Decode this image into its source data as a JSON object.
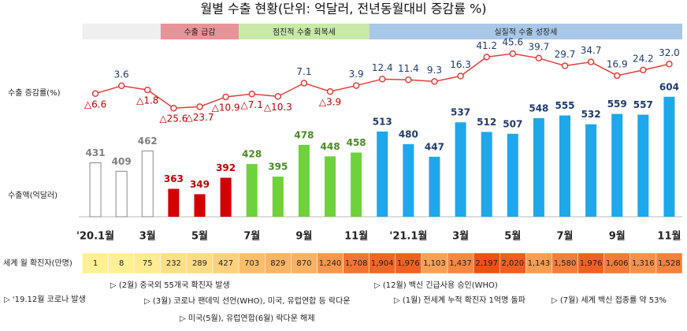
{
  "chart_data": {
    "type": "combo",
    "title": "월별 수출 현황(단위: 억달러, 전년동월대비 증감률 %)",
    "categories": [
      "'20.1월",
      null,
      "3월",
      null,
      "5월",
      null,
      "7월",
      null,
      "9월",
      null,
      "11월",
      null,
      "'21.1월",
      null,
      "3월",
      null,
      "5월",
      null,
      "7월",
      null,
      "9월",
      null,
      "11월"
    ],
    "series": [
      {
        "name": "수출 증감률(%)",
        "type": "line",
        "axis": "y2",
        "color": "#e0403a",
        "values": [
          -6.6,
          3.6,
          -1.8,
          -25.6,
          -23.7,
          -10.9,
          -7.1,
          -10.3,
          7.1,
          -3.9,
          3.9,
          12.4,
          11.4,
          9.3,
          16.3,
          41.2,
          45.6,
          39.7,
          29.7,
          34.7,
          16.9,
          24.2,
          32.0
        ],
        "value_labels": [
          "△6.6",
          "3.6",
          "△1.8",
          "△25.6",
          "△23.7",
          "△10.9",
          "△7.1",
          "△10.3",
          "7.1",
          "△3.9",
          "3.9",
          "12.4",
          "11.4",
          "9.3",
          "16.3",
          "41.2",
          "45.6",
          "39.7",
          "29.7",
          "34.7",
          "16.9",
          "24.2",
          "32.0"
        ]
      },
      {
        "name": "수출액(억달러)",
        "type": "bar",
        "values": [
          431,
          409,
          462,
          363,
          349,
          392,
          428,
          395,
          478,
          448,
          458,
          513,
          480,
          447,
          537,
          512,
          507,
          548,
          555,
          532,
          559,
          557,
          604
        ]
      }
    ],
    "ylim": [
      290,
      620
    ],
    "y2lim": [
      -30,
      50
    ],
    "phases": [
      {
        "span": 3,
        "color": "#efefef",
        "bar_color": "#ffffff",
        "label_color": "#808080"
      },
      {
        "label": "수출 급감",
        "span": 3,
        "color": "#e6949a",
        "bar_color": "#d20000",
        "label_color": "#c00000"
      },
      {
        "label": "점진적 수출 회복세",
        "span": 5,
        "color": "#c9e9a8",
        "bar_color": "#6dd23c",
        "label_color": "#4b8a26"
      },
      {
        "label": "실질적 수출 성장세",
        "span": 12,
        "color": "#a9c8e8",
        "bar_color": "#1ea7ea",
        "label_color": "#1f3b6e"
      }
    ],
    "cases": {
      "name": "세계 월 확진자(만명)",
      "values": [
        1,
        8,
        75,
        232,
        289,
        427,
        703,
        829,
        870,
        1240,
        1708,
        1904,
        1976,
        1103,
        1437,
        2197,
        2020,
        1143,
        1580,
        1976,
        1606,
        1316,
        1528
      ],
      "value_labels": [
        "1",
        "8",
        "75",
        "232",
        "289",
        "427",
        "703",
        "829",
        "870",
        "1,240",
        "1,708",
        "1,904",
        "1,976",
        "1,103",
        "1,437",
        "2,197",
        "2,020",
        "1,143",
        "1,580",
        "1,976",
        "1,606",
        "1,316",
        "1,528"
      ]
    },
    "annotations": [
      "▷ (2월) 중국외 55개국 확진자 발생",
      "▷ (3월) 코로나 팬데믹 선언(WHO), 미국, 유럽연합 등 락다운",
      "▷ 미국(5월), 유럽연합(6월) 락다운 해제",
      "▷ '19.12월 코로나 발생",
      "▷ (12월) 백신 긴급사용 승인(WHO)",
      "▷ (1월) 전세계 누적 확진자 1억명 돌파",
      "▷ (7월) 세계 백신 접종률 약 53%"
    ]
  }
}
